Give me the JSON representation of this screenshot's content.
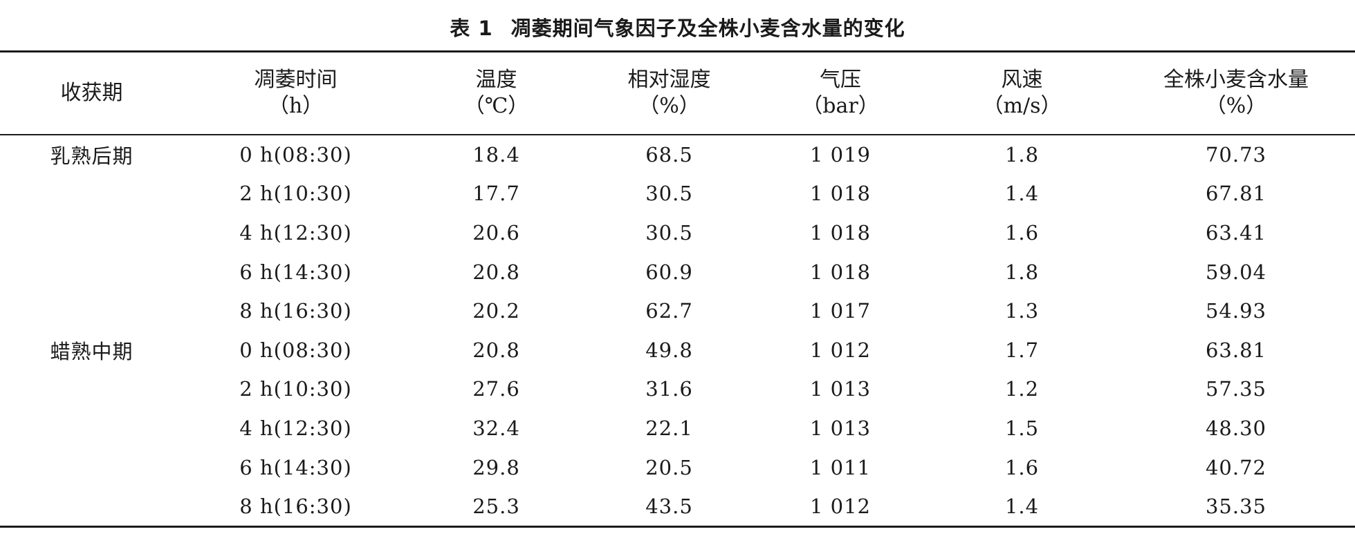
{
  "caption": {
    "number": "表 1",
    "title": "凋萎期间气象因子及全株小麦含水量的变化"
  },
  "headers": [
    {
      "label": "收获期",
      "unit": ""
    },
    {
      "label": "凋萎时间",
      "unit": "（h）"
    },
    {
      "label": "温度",
      "unit": "（℃）"
    },
    {
      "label": "相对湿度",
      "unit": "（%）"
    },
    {
      "label": "气压",
      "unit": "（bar）"
    },
    {
      "label": "风速",
      "unit": "（m/s）"
    },
    {
      "label": "全株小麦含水量",
      "unit": "（%）"
    }
  ],
  "rows": [
    {
      "period": "乳熟后期",
      "time": "0 h(08:30)",
      "temp": "18.4",
      "rh": "68.5",
      "pressure": "1 019",
      "wind": "1.8",
      "moisture": "70.73"
    },
    {
      "period": "",
      "time": "2 h(10:30)",
      "temp": "17.7",
      "rh": "30.5",
      "pressure": "1 018",
      "wind": "1.4",
      "moisture": "67.81"
    },
    {
      "period": "",
      "time": "4 h(12:30)",
      "temp": "20.6",
      "rh": "30.5",
      "pressure": "1 018",
      "wind": "1.6",
      "moisture": "63.41"
    },
    {
      "period": "",
      "time": "6 h(14:30)",
      "temp": "20.8",
      "rh": "60.9",
      "pressure": "1 018",
      "wind": "1.8",
      "moisture": "59.04"
    },
    {
      "period": "",
      "time": "8 h(16:30)",
      "temp": "20.2",
      "rh": "62.7",
      "pressure": "1 017",
      "wind": "1.3",
      "moisture": "54.93"
    },
    {
      "period": "蜡熟中期",
      "time": "0 h(08:30)",
      "temp": "20.8",
      "rh": "49.8",
      "pressure": "1 012",
      "wind": "1.7",
      "moisture": "63.81"
    },
    {
      "period": "",
      "time": "2 h(10:30)",
      "temp": "27.6",
      "rh": "31.6",
      "pressure": "1 013",
      "wind": "1.2",
      "moisture": "57.35"
    },
    {
      "period": "",
      "time": "4 h(12:30)",
      "temp": "32.4",
      "rh": "22.1",
      "pressure": "1 013",
      "wind": "1.5",
      "moisture": "48.30"
    },
    {
      "period": "",
      "time": "6 h(14:30)",
      "temp": "29.8",
      "rh": "20.5",
      "pressure": "1 011",
      "wind": "1.6",
      "moisture": "40.72"
    },
    {
      "period": "",
      "time": "8 h(16:30)",
      "temp": "25.3",
      "rh": "43.5",
      "pressure": "1 012",
      "wind": "1.4",
      "moisture": "35.35"
    }
  ]
}
